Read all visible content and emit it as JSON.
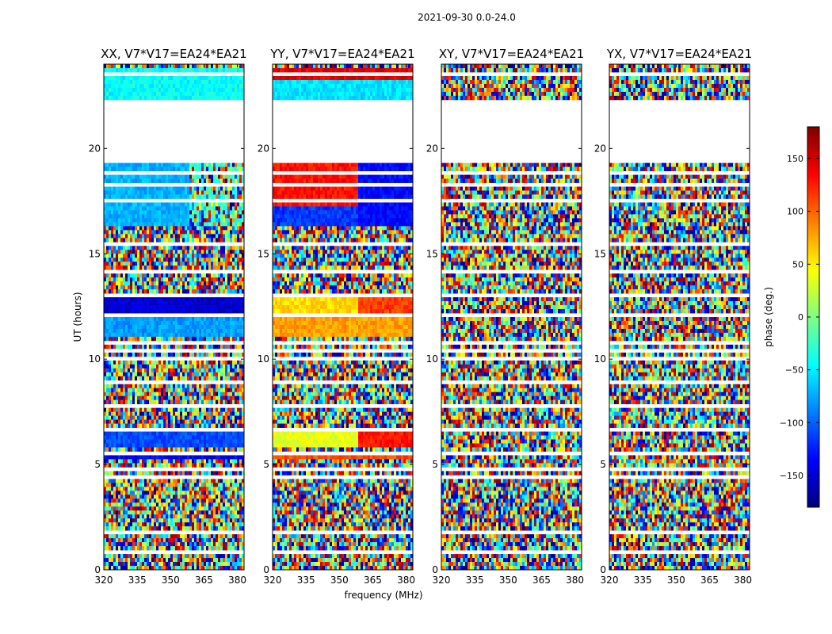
{
  "chart_data": {
    "type": "heatmap",
    "title": "2021-09-30 0.0-24.0",
    "xlabel": "frequency (MHz)",
    "ylabel": "UT (hours)",
    "xlim": [
      320,
      383
    ],
    "ylim": [
      0,
      24
    ],
    "xticks": [
      "320",
      "335",
      "350",
      "365",
      "380"
    ],
    "yticks": [
      "0",
      "5",
      "10",
      "15",
      "20"
    ],
    "panels": [
      {
        "id": "xx",
        "title": "XX, V7*V17=EA24*EA21",
        "mode": "blue"
      },
      {
        "id": "yy",
        "title": "YY, V7*V17=EA24*EA21",
        "mode": "red"
      },
      {
        "id": "xy",
        "title": "XY, V7*V17=EA24*EA21",
        "mode": "noise"
      },
      {
        "id": "yx",
        "title": "YX, V7*V17=EA24*EA21",
        "mode": "noise"
      }
    ],
    "no_data_ut_ranges": [
      [
        19.3,
        22.2
      ]
    ],
    "colorbar": {
      "label": "phase (deg.)",
      "range": [
        -180,
        180
      ],
      "ticks": [
        "150",
        "100",
        "50",
        "0",
        "−50",
        "−100",
        "−150"
      ],
      "tick_values": [
        150,
        100,
        50,
        0,
        -50,
        -100,
        -150
      ],
      "colormap": [
        "#00007f",
        "#0000ff",
        "#007fff",
        "#00ffff",
        "#7fff7f",
        "#ffff00",
        "#ff7f00",
        "#ff0000",
        "#7f0000"
      ]
    }
  }
}
